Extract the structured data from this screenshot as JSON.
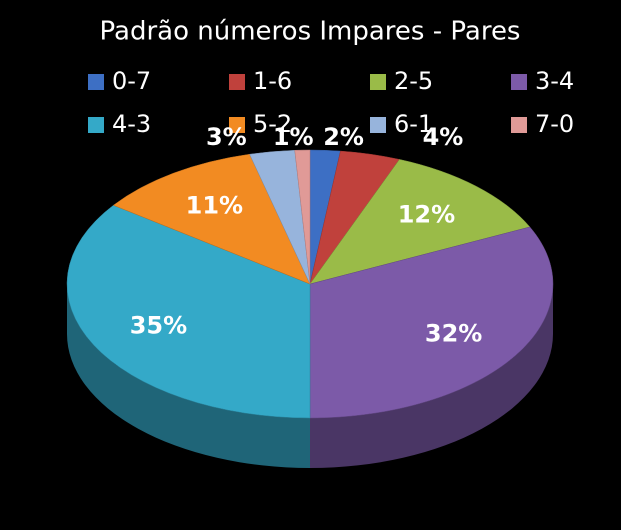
{
  "chart_data": {
    "type": "pie",
    "title": "Padrão números Impares - Pares",
    "categories": [
      "0-7",
      "1-6",
      "2-5",
      "3-4",
      "4-3",
      "5-2",
      "6-1",
      "7-0"
    ],
    "values": [
      2,
      4,
      12,
      32,
      35,
      11,
      3,
      1
    ],
    "value_labels": [
      "2%",
      "4%",
      "12%",
      "32%",
      "35%",
      "11%",
      "3%",
      "1%"
    ],
    "colors": [
      "#3d6fc4",
      "#c0413c",
      "#9abb48",
      "#7c5aa8",
      "#34a9c8",
      "#f28b22",
      "#97b4dc",
      "#e09a97"
    ],
    "legend": "top"
  }
}
